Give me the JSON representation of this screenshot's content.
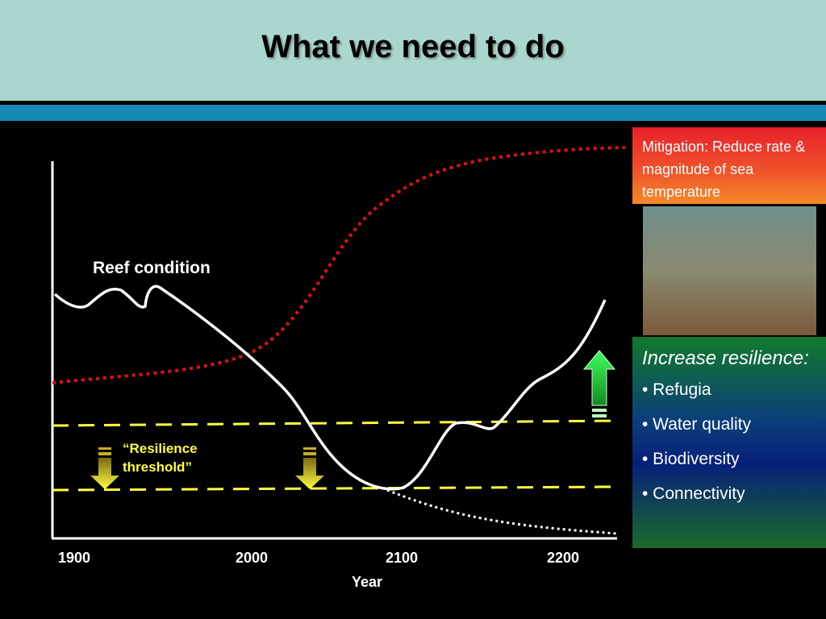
{
  "title": "What we need to do",
  "chart": {
    "curve_label": "Reef condition",
    "threshold_label": "“Resilience threshold”",
    "x_labels": [
      "1900",
      "2000",
      "2100",
      "2200"
    ],
    "x_axis_label": "Year"
  },
  "mitigation": "Mitigation: Reduce rate & magnitude of sea temperature",
  "resilience": {
    "heading": "Increase resilience:",
    "items": [
      "• Refugia",
      "• Water quality",
      "• Biodiversity",
      "• Connectivity"
    ]
  }
}
